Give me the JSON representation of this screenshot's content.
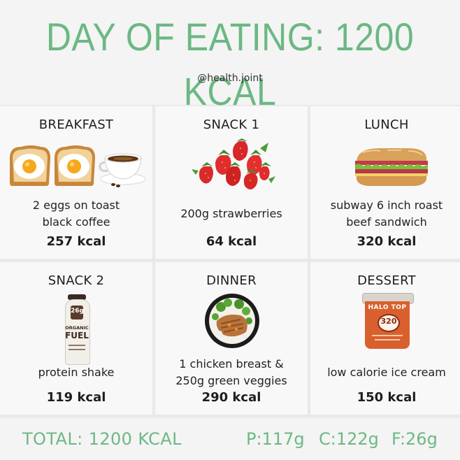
{
  "header": {
    "title": "DAY OF EATING: 1200 KCAL",
    "handle": "@health.joint"
  },
  "meals": [
    {
      "name": "BREAKFAST",
      "food_line1": "2 eggs on toast",
      "food_line2": "black coffee",
      "kcal": "257 kcal",
      "icon": "eggs-on-toast-and-coffee-icon"
    },
    {
      "name": "SNACK 1",
      "food_line1": "200g strawberries",
      "food_line2": "",
      "kcal": "64 kcal",
      "icon": "strawberries-icon"
    },
    {
      "name": "LUNCH",
      "food_line1": "subway 6 inch roast",
      "food_line2": "beef sandwich",
      "kcal": "320 kcal",
      "icon": "sandwich-icon"
    },
    {
      "name": "SNACK 2",
      "food_line1": "protein shake",
      "food_line2": "",
      "kcal": "119 kcal",
      "icon": "protein-shake-bottle-icon",
      "bottle_text": {
        "top": "26g",
        "brand_line1": "ORGANIC",
        "brand_line2": "FUEL"
      }
    },
    {
      "name": "DINNER",
      "food_line1": "1 chicken breast &",
      "food_line2": "250g  green veggies",
      "kcal": "290 kcal",
      "icon": "chicken-and-veggies-bowl-icon"
    },
    {
      "name": "DESSERT",
      "food_line1": "low calorie ice cream",
      "food_line2": "",
      "kcal": "150 kcal",
      "icon": "ice-cream-pint-icon",
      "pint_text": {
        "brand": "HALO TOP",
        "calories": "320"
      }
    }
  ],
  "footer": {
    "total": "TOTAL: 1200 KCAL",
    "protein": "P:117g",
    "carbs": "C:122g",
    "fat": "F:26g"
  },
  "colors": {
    "accent": "#6cb883",
    "background": "#e9e9e9",
    "card": "#f8f8f8"
  }
}
